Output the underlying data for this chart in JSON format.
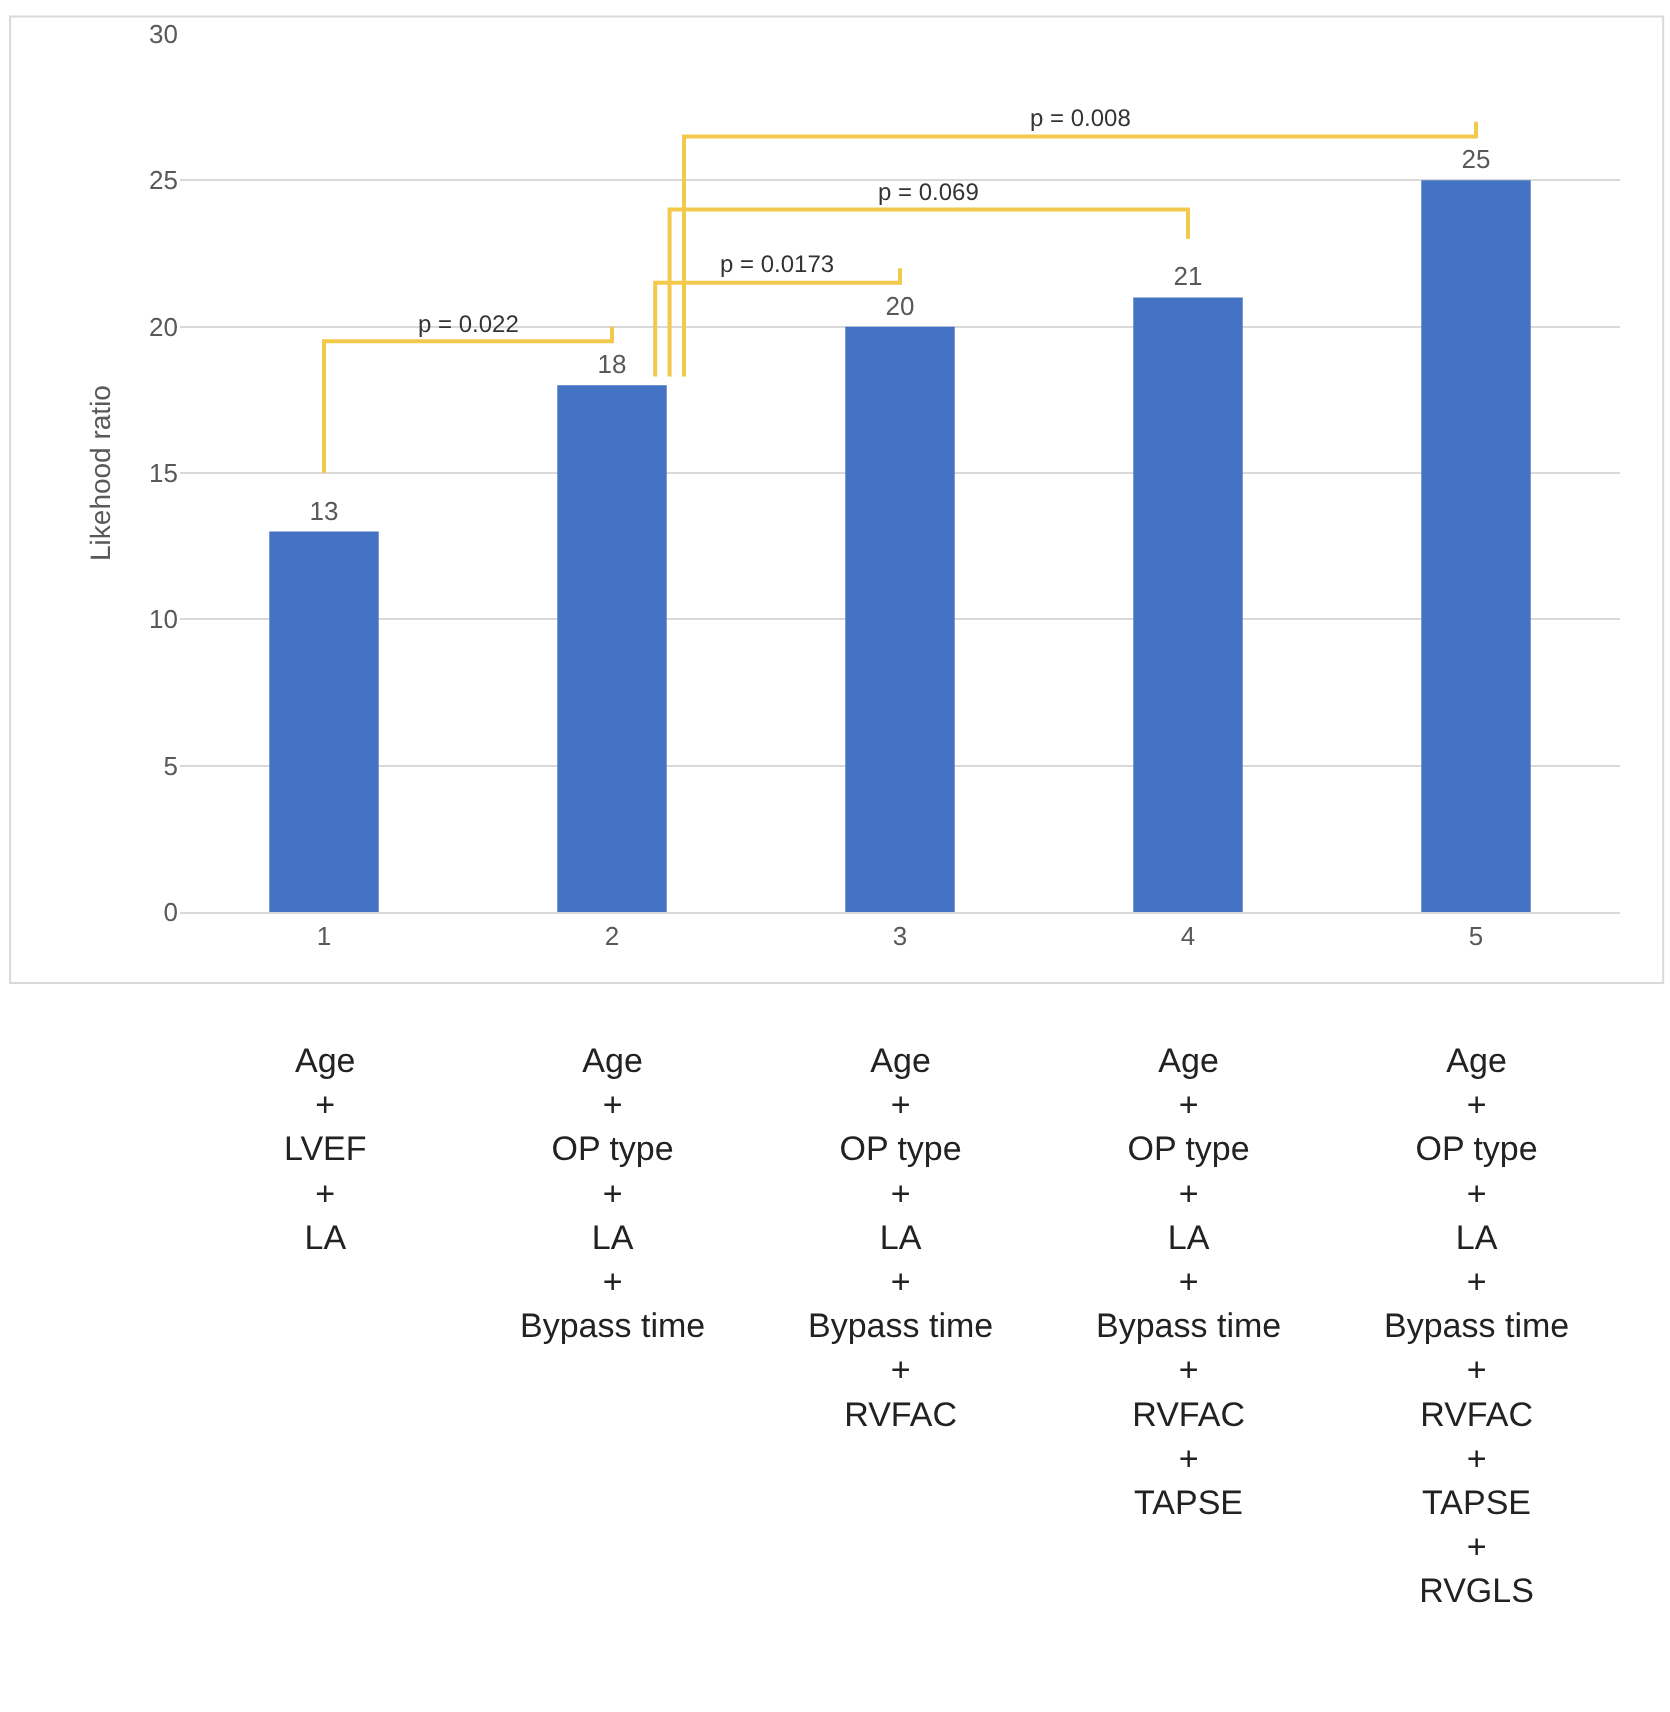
{
  "chart_data": {
    "type": "bar",
    "ylabel": "Likehood ratio",
    "categories": [
      "1",
      "2",
      "3",
      "4",
      "5"
    ],
    "values": [
      13,
      18,
      20,
      21,
      25
    ],
    "color": "#4472c4",
    "data_labels": true,
    "ylim": [
      0,
      30
    ],
    "yticks": [
      0,
      5,
      10,
      15,
      20,
      25,
      30
    ],
    "grid": "y",
    "annotations": [
      "p = 0.022",
      "p = 0.0173",
      "p = 0.069",
      "p = 0.008",
      "Age\n+\nLVEF\n+\nLA",
      "Age\n+\nOP type\n+\nLA\n+\nBypass time",
      "Age\n+\nOP type\n+\nLA\n+\nBypass time\n+\nRVFAC",
      "Age\n+\nOP type\n+\nLA\n+\nBypass time\n+\nRVFAC\n+\nTAPSE",
      "Age\n+\nOP type\n+\nLA\n+\nBypass time\n+\nRVFAC\n+\nTAPSE\n+\nRVGLS"
    ]
  }
}
